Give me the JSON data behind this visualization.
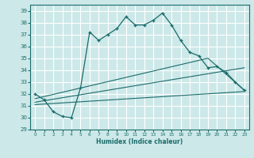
{
  "xlabel": "Humidex (Indice chaleur)",
  "bg_color": "#cde8e8",
  "grid_color": "#ffffff",
  "line_color": "#1a6b6b",
  "xlim": [
    -0.5,
    23.5
  ],
  "ylim": [
    29,
    39.5
  ],
  "xticks": [
    0,
    1,
    2,
    3,
    4,
    5,
    6,
    7,
    8,
    9,
    10,
    11,
    12,
    13,
    14,
    15,
    16,
    17,
    18,
    19,
    20,
    21,
    22,
    23
  ],
  "yticks": [
    29,
    30,
    31,
    32,
    33,
    34,
    35,
    36,
    37,
    38,
    39
  ],
  "series1_x": [
    0,
    1,
    2,
    3,
    4,
    5,
    6,
    7,
    8,
    9,
    10,
    11,
    12,
    13,
    14,
    15,
    16,
    17,
    18,
    19,
    20,
    21,
    22,
    23
  ],
  "series1_y": [
    32.0,
    31.5,
    30.5,
    30.1,
    30.0,
    32.5,
    37.2,
    36.5,
    37.0,
    37.5,
    38.5,
    37.8,
    37.8,
    38.2,
    38.8,
    37.8,
    36.5,
    35.5,
    35.2,
    34.2,
    34.3,
    33.8,
    33.0,
    32.3
  ],
  "series2_x": [
    0,
    23
  ],
  "series2_y": [
    31.1,
    32.2
  ],
  "series3_x": [
    0,
    23
  ],
  "series3_y": [
    31.3,
    34.2
  ],
  "series4_x": [
    0,
    19,
    23
  ],
  "series4_y": [
    31.6,
    35.0,
    32.3
  ]
}
